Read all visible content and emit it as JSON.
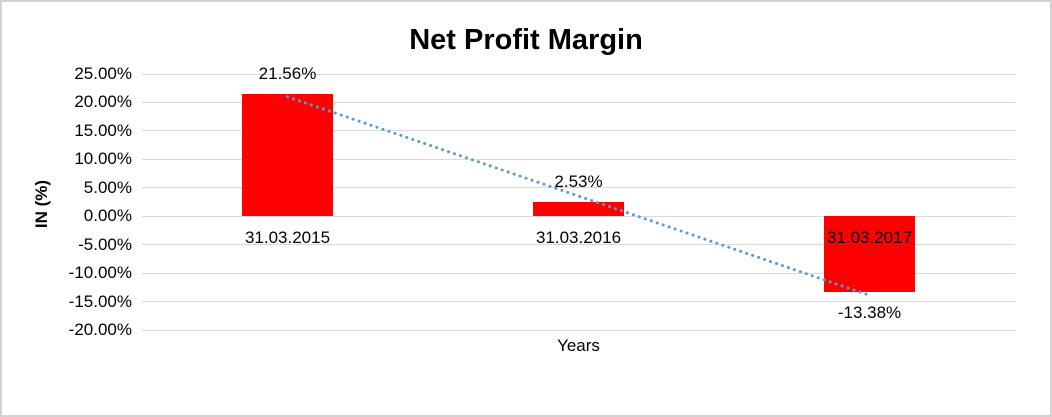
{
  "chart_data": {
    "type": "bar",
    "title": "Net Profit Margin",
    "xlabel": "Years",
    "ylabel": "IN (%)",
    "ylim": [
      -20,
      25
    ],
    "grid": "horizontal",
    "legend": "none",
    "bar_color": "#FF0000",
    "gridline_color": "#D9D9D9",
    "text_color": "#000000",
    "categories": [
      "31.03.2015",
      "31.03.2016",
      "31.03.2017"
    ],
    "values": [
      21.56,
      2.53,
      -13.38
    ],
    "data_labels": [
      "21.56%",
      "2.53%",
      "-13.38%"
    ],
    "y_ticks": [
      {
        "value": 25,
        "label": "25.00%"
      },
      {
        "value": 20,
        "label": "20.00%"
      },
      {
        "value": 15,
        "label": "15.00%"
      },
      {
        "value": 10,
        "label": "10.00%"
      },
      {
        "value": 5,
        "label": "5.00%"
      },
      {
        "value": 0,
        "label": "0.00%"
      },
      {
        "value": -5,
        "label": "-5.00%"
      },
      {
        "value": -10,
        "label": "-10.00%"
      },
      {
        "value": -15,
        "label": "-15.00%"
      },
      {
        "value": -20,
        "label": "-20.00%"
      }
    ],
    "trendline": {
      "type": "linear",
      "style": "dotted",
      "color": "#5B9BD5",
      "start_value": 21.0,
      "end_value": -13.9
    }
  }
}
